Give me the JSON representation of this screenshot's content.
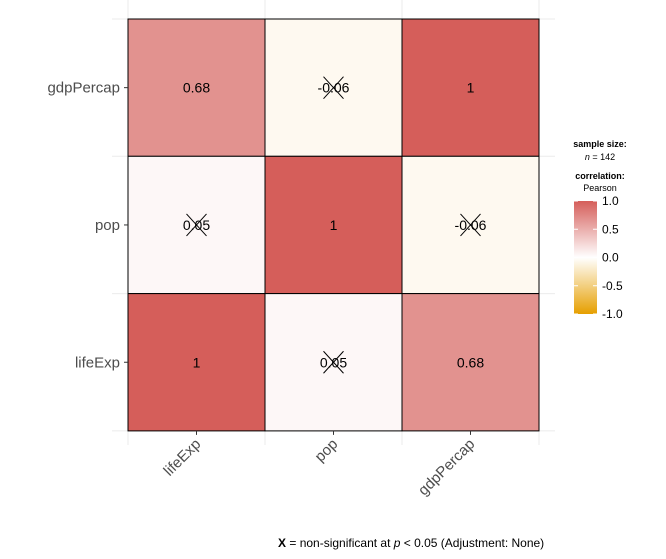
{
  "chart_data": {
    "type": "heatmap",
    "x_categories": [
      "lifeExp",
      "pop",
      "gdpPercap"
    ],
    "y_categories": [
      "lifeExp",
      "pop",
      "gdpPercap"
    ],
    "cells": [
      {
        "x": "lifeExp",
        "y": "gdpPercap",
        "value": 0.68,
        "label": "0.68",
        "significant": true
      },
      {
        "x": "pop",
        "y": "gdpPercap",
        "value": -0.06,
        "label": "-0.06",
        "significant": false
      },
      {
        "x": "gdpPercap",
        "y": "gdpPercap",
        "value": 1,
        "label": "1",
        "significant": true
      },
      {
        "x": "lifeExp",
        "y": "pop",
        "value": 0.05,
        "label": "0.05",
        "significant": false
      },
      {
        "x": "pop",
        "y": "pop",
        "value": 1,
        "label": "1",
        "significant": true
      },
      {
        "x": "gdpPercap",
        "y": "pop",
        "value": -0.06,
        "label": "-0.06",
        "significant": false
      },
      {
        "x": "lifeExp",
        "y": "lifeExp",
        "value": 1,
        "label": "1",
        "significant": true
      },
      {
        "x": "pop",
        "y": "lifeExp",
        "value": 0.05,
        "label": "0.05",
        "significant": false
      },
      {
        "x": "gdpPercap",
        "y": "lifeExp",
        "value": 0.68,
        "label": "0.68",
        "significant": true
      }
    ],
    "color_scale": {
      "low": "#E69F00",
      "mid": "#FFFFFF",
      "high": "#D55E5A",
      "limits": [
        -1,
        1
      ]
    },
    "legend": {
      "sample_size_title": "sample size:",
      "sample_size_n_label": "n",
      "sample_size_value": "= 142",
      "correlation_title": "correlation:",
      "correlation_method": "Pearson",
      "ticks": [
        "1.0",
        "0.5",
        "0.0",
        "-0.5",
        "-1.0"
      ],
      "tick_values": [
        1,
        0.5,
        0,
        -0.5,
        -1
      ],
      "placement": "right"
    },
    "caption": {
      "marker": "X",
      "text_before": " = non-significant at ",
      "p_symbol": "p",
      "text_after": " < 0.05 (Adjustment: None)"
    },
    "grid": true
  }
}
